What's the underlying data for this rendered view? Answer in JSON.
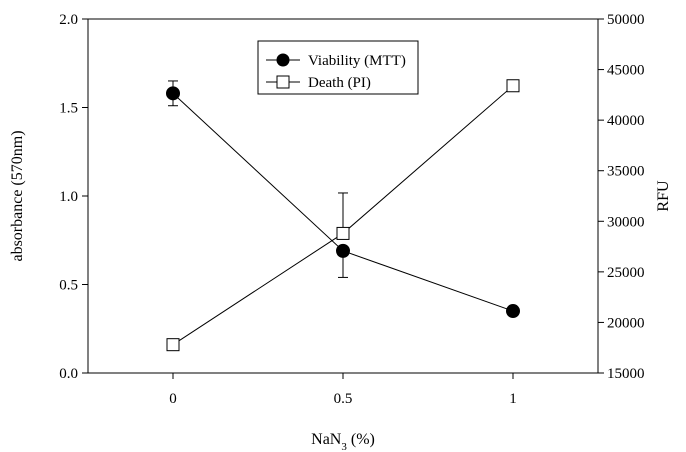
{
  "chart_data": {
    "type": "line",
    "x": [
      0,
      0.5,
      1
    ],
    "x_tick_labels": [
      "0",
      "0.5",
      "1"
    ],
    "xlabel": "NaN3 (%)",
    "xlabel_parts": {
      "base": "NaN",
      "subscript": "3",
      "suffix": " (%)"
    },
    "xlim": [
      -0.25,
      1.25
    ],
    "left_axis": {
      "label": "absorbance (570nm)",
      "ylim": [
        0.0,
        2.0
      ],
      "ticks": [
        "0.0",
        "0.5",
        "1.0",
        "1.5",
        "2.0"
      ]
    },
    "right_axis": {
      "label": "RFU",
      "ylim": [
        15000,
        50000
      ],
      "ticks": [
        "15000",
        "20000",
        "25000",
        "30000",
        "35000",
        "40000",
        "45000",
        "50000"
      ]
    },
    "series": [
      {
        "name": "Viability (MTT)",
        "axis": "left",
        "marker": "filled-circle",
        "values": [
          1.58,
          0.69,
          0.35
        ],
        "error_plus": [
          0.07,
          0.0,
          0.0
        ],
        "error_minus": [
          0.07,
          0.15,
          0.0
        ]
      },
      {
        "name": "Death (PI)",
        "axis": "right",
        "marker": "open-square",
        "values": [
          17800,
          28800,
          43400
        ],
        "error_plus": [
          0,
          4000,
          500
        ],
        "error_minus": [
          0,
          0,
          500
        ]
      }
    ],
    "legend_position": "top-center",
    "grid": false,
    "colors": {
      "line": "#000000",
      "background": "#ffffff"
    }
  }
}
